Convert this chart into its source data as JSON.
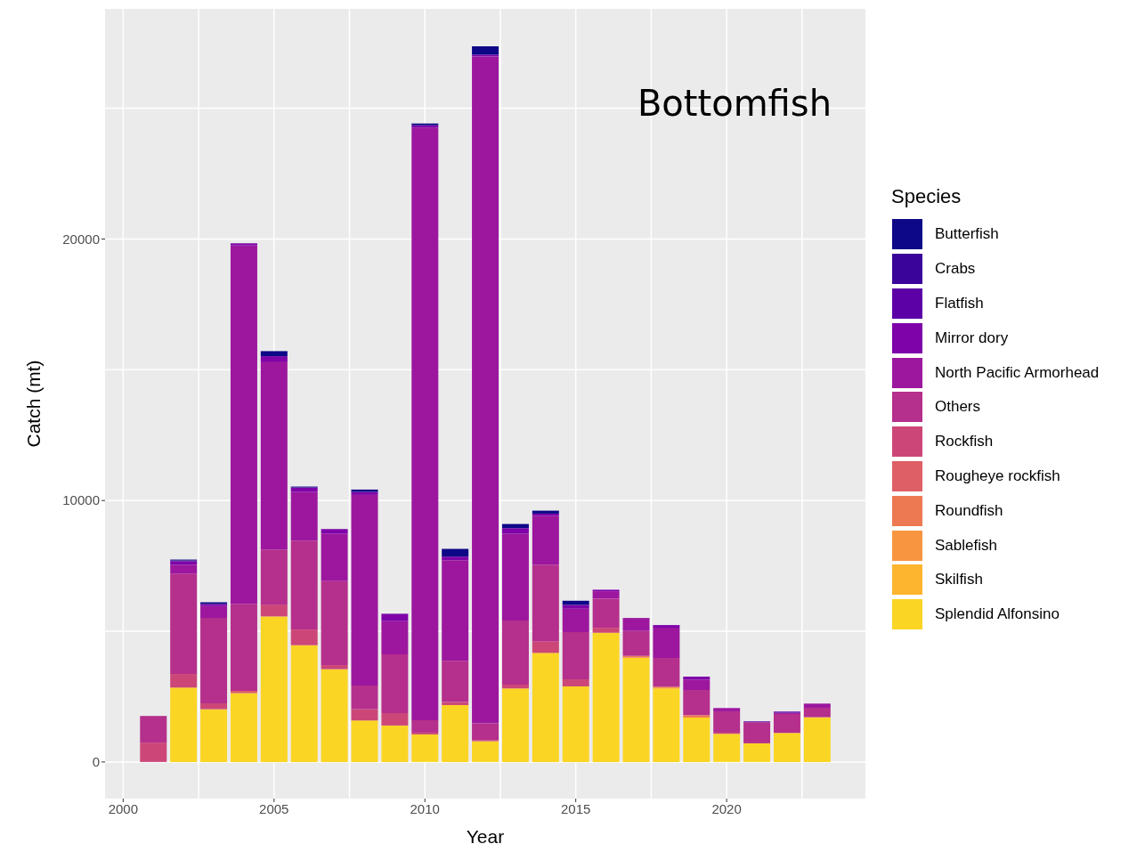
{
  "chart_data": {
    "type": "bar",
    "title": "Bottomfish",
    "xlabel": "Year",
    "ylabel": "Catch (mt)",
    "legend_title": "Species",
    "stacked": true,
    "legend": "right",
    "grid": true,
    "x": [
      2001,
      2002,
      2003,
      2004,
      2005,
      2006,
      2007,
      2008,
      2009,
      2010,
      2011,
      2012,
      2013,
      2014,
      2015,
      2016,
      2017,
      2018,
      2019,
      2020,
      2021,
      2022,
      2023
    ],
    "xlim": [
      1999.4,
      2024.6
    ],
    "xticks": [
      2000,
      2005,
      2010,
      2015,
      2020
    ],
    "ylim": [
      -1400,
      28800
    ],
    "yticks": [
      0,
      10000,
      20000
    ],
    "series": [
      {
        "name": "Splendid Alfonsino",
        "color": "#fbd524",
        "values": [
          0,
          2845,
          2017,
          2630,
          5565,
          4466,
          3548,
          1587,
          1394,
          1054,
          2176,
          794,
          2812,
          4171,
          2891,
          4942,
          3990,
          2812,
          1700,
          1077,
          714,
          1111,
          1711
        ]
      },
      {
        "name": "Skilfish",
        "color": "#fdb42f",
        "values": [
          0,
          0,
          0,
          0,
          0,
          0,
          0,
          0,
          0,
          0,
          0,
          0,
          0,
          0,
          0,
          0,
          0,
          0,
          0,
          0,
          0,
          0,
          0
        ]
      },
      {
        "name": "Sablefish",
        "color": "#f89540",
        "values": [
          0,
          0,
          0,
          0,
          0,
          0,
          0,
          0,
          0,
          0,
          0,
          0,
          0,
          0,
          0,
          0,
          0,
          57,
          0,
          0,
          0,
          0,
          0
        ]
      },
      {
        "name": "Roundfish",
        "color": "#ed7953",
        "values": [
          0,
          0,
          0,
          0,
          0,
          0,
          0,
          0,
          0,
          0,
          0,
          0,
          0,
          0,
          0,
          0,
          68,
          0,
          91,
          0,
          0,
          0,
          0
        ]
      },
      {
        "name": "Rougheye rockfish",
        "color": "#de5f65",
        "values": [
          0,
          0,
          0,
          90,
          0,
          0,
          0,
          0,
          0,
          0,
          0,
          0,
          0,
          0,
          0,
          0,
          0,
          0,
          0,
          0,
          0,
          0,
          0
        ]
      },
      {
        "name": "Rockfish",
        "color": "#cc4778",
        "values": [
          740,
          520,
          227,
          0,
          453,
          600,
          158,
          430,
          476,
          68,
          114,
          46,
          146,
          442,
          271,
          192,
          0,
          0,
          0,
          45,
          0,
          0,
          0
        ]
      },
      {
        "name": "Others",
        "color": "#b52f8c",
        "values": [
          1020,
          3830,
          3264,
          3332,
          2108,
          3400,
          3206,
          908,
          2245,
          476,
          1576,
          634,
          2448,
          2925,
          1803,
          1112,
          952,
          1109,
          963,
          816,
          805,
          725,
          363
        ]
      },
      {
        "name": "North Pacific Armorhead",
        "color": "#9c179e",
        "values": [
          0,
          350,
          454,
          13702,
          7188,
          1862,
          1826,
          7288,
          1269,
          22662,
          3852,
          25506,
          3332,
          1880,
          895,
          283,
          498,
          1156,
          398,
          125,
          0,
          46,
          159
        ]
      },
      {
        "name": "Mirror dory",
        "color": "#7e03a8",
        "values": [
          0,
          135,
          78,
          82,
          204,
          170,
          170,
          115,
          284,
          90,
          136,
          68,
          204,
          79,
          148,
          58,
          0,
          102,
          112,
          0,
          0,
          0,
          0
        ]
      },
      {
        "name": "Flatfish",
        "color": "#5c01a6",
        "values": [
          0,
          0,
          0,
          0,
          0,
          0,
          0,
          0,
          0,
          0,
          0,
          0,
          0,
          0,
          0,
          0,
          0,
          0,
          0,
          0,
          34,
          45,
          0
        ]
      },
      {
        "name": "Crabs",
        "color": "#3a049a",
        "values": [
          0,
          30,
          0,
          null,
          0,
          0,
          0,
          0,
          0,
          0,
          0,
          0,
          0,
          0,
          0,
          0,
          0,
          0,
          0,
          0,
          0,
          0,
          0
        ]
      },
      {
        "name": "Butterfish",
        "color": "#0d0887",
        "values": [
          0,
          30,
          68,
          0,
          194,
          34,
          null,
          90,
          0,
          68,
          296,
          322,
          159,
          114,
          158,
          0,
          0,
          0,
          0,
          0,
          0,
          0,
          0
        ]
      }
    ]
  }
}
